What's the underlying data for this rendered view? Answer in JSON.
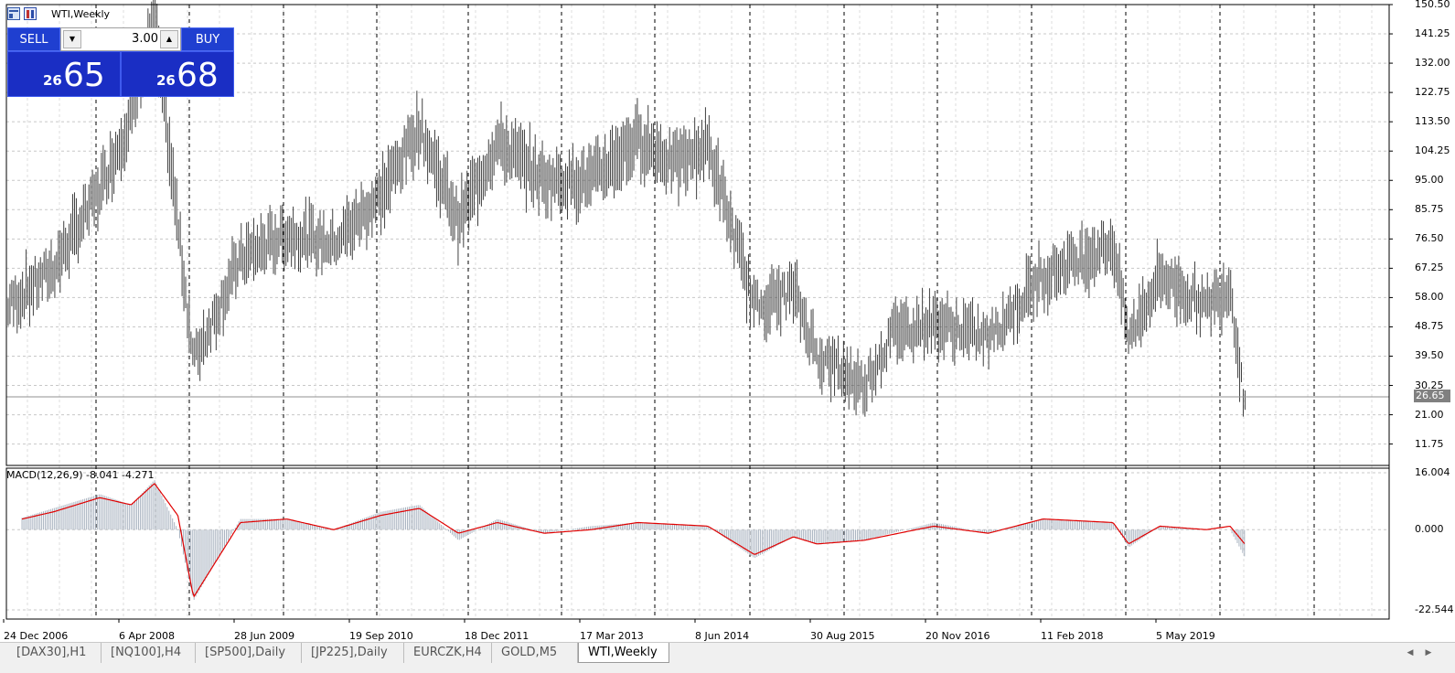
{
  "window": {
    "title": "WTI,Weekly",
    "icons": [
      "chart-window-icon",
      "properties-icon"
    ]
  },
  "trade_panel": {
    "sell_label": "SELL",
    "buy_label": "BUY",
    "lot_value": "3.00",
    "sell_price_small": "26",
    "sell_price_big": "65",
    "buy_price_small": "26",
    "buy_price_big": "68",
    "down_arrow": "▼",
    "up_arrow": "▲"
  },
  "indicator": {
    "label": "MACD(12,26,9) -8.041 -4.271"
  },
  "current_price_label": "26.65",
  "colors": {
    "bar": "#404040",
    "macd_hist": "#a9b3c0",
    "signal": "#e00000",
    "grid": "#c8c8c8",
    "panel": "#1a2ec4"
  },
  "tabs": [
    {
      "label": "[DAX30],H1",
      "active": false
    },
    {
      "label": "[NQ100],H4",
      "active": false
    },
    {
      "label": "[SP500],Daily",
      "active": false
    },
    {
      "label": "[JP225],Daily",
      "active": false
    },
    {
      "label": "EURCZK,H4",
      "active": false
    },
    {
      "label": "GOLD,M5",
      "active": false
    },
    {
      "label": "WTI,Weekly",
      "active": true
    }
  ],
  "chart_data": [
    {
      "type": "bar",
      "title": "WTI,Weekly",
      "x_tick_labels": [
        "24 Dec 2006",
        "6 Apr 2008",
        "28 Jun 2009",
        "19 Sep 2010",
        "18 Dec 2011",
        "17 Mar 2013",
        "8 Jun 2014",
        "30 Aug 2015",
        "20 Nov 2016",
        "11 Feb 2018",
        "5 May 2019"
      ],
      "y_tick_labels": [
        "150.50",
        "141.25",
        "132.00",
        "122.75",
        "113.50",
        "104.25",
        "95.00",
        "85.75",
        "76.50",
        "67.25",
        "58.00",
        "48.75",
        "39.50",
        "30.25",
        "21.00",
        "11.75"
      ],
      "ylim": [
        5,
        150.5
      ],
      "current_price": 26.65,
      "series": [
        {
          "name": "WTI",
          "x": [
            "2006-12",
            "2007-06",
            "2007-12",
            "2008-04",
            "2008-07",
            "2008-12",
            "2009-06",
            "2009-12",
            "2010-06",
            "2010-12",
            "2011-05",
            "2011-10",
            "2012-03",
            "2012-09",
            "2013-03",
            "2013-09",
            "2014-02",
            "2014-06",
            "2014-12",
            "2015-05",
            "2015-08",
            "2016-02",
            "2016-06",
            "2016-11",
            "2017-06",
            "2018-01",
            "2018-10",
            "2018-12",
            "2019-04",
            "2019-10",
            "2020-01",
            "2020-03"
          ],
          "values": [
            55,
            67,
            92,
            115,
            145,
            38,
            70,
            78,
            75,
            90,
            112,
            82,
            107,
            95,
            95,
            108,
            100,
            106,
            55,
            60,
            40,
            30,
            48,
            50,
            45,
            65,
            75,
            45,
            65,
            55,
            62,
            22
          ]
        }
      ]
    },
    {
      "type": "area",
      "title": "MACD(12,26,9)",
      "y_tick_labels": [
        "16.004",
        "0.000",
        "-22.544"
      ],
      "ylim": [
        -22.544,
        16.004
      ],
      "series": [
        {
          "name": "MACD",
          "x": [
            "2006-12",
            "2007-06",
            "2007-12",
            "2008-04",
            "2008-07",
            "2008-10",
            "2008-12",
            "2009-06",
            "2009-12",
            "2010-06",
            "2010-12",
            "2011-05",
            "2011-10",
            "2012-03",
            "2012-09",
            "2013-03",
            "2013-09",
            "2014-06",
            "2014-12",
            "2015-05",
            "2015-08",
            "2016-02",
            "2016-11",
            "2017-06",
            "2018-01",
            "2018-10",
            "2018-12",
            "2019-04",
            "2019-10",
            "2020-01",
            "2020-03"
          ],
          "values": [
            2,
            6,
            10,
            7,
            14,
            0,
            -20,
            3,
            3,
            0,
            5,
            7,
            -3,
            3,
            -1,
            1,
            2,
            1,
            -8,
            -2,
            -4,
            -3,
            2,
            -1,
            3,
            2,
            -5,
            1,
            0,
            0,
            -8.041
          ]
        },
        {
          "name": "Signal",
          "x": [
            "2006-12",
            "2007-06",
            "2007-12",
            "2008-04",
            "2008-07",
            "2008-10",
            "2008-12",
            "2009-06",
            "2009-12",
            "2010-06",
            "2010-12",
            "2011-05",
            "2011-10",
            "2012-03",
            "2012-09",
            "2013-03",
            "2013-09",
            "2014-06",
            "2014-12",
            "2015-05",
            "2015-08",
            "2016-02",
            "2016-11",
            "2017-06",
            "2018-01",
            "2018-10",
            "2018-12",
            "2019-04",
            "2019-10",
            "2020-01",
            "2020-03"
          ],
          "values": [
            2,
            5,
            9,
            7,
            13,
            4,
            -19,
            2,
            3,
            0,
            4,
            6,
            -1,
            2,
            -1,
            0,
            2,
            1,
            -7,
            -2,
            -4,
            -3,
            1,
            -1,
            3,
            2,
            -4,
            1,
            0,
            1,
            -4.271
          ]
        }
      ]
    }
  ]
}
